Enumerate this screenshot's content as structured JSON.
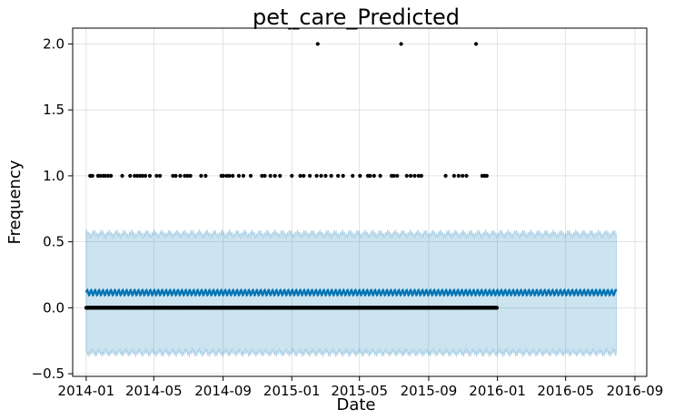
{
  "chart_data": {
    "type": "scatter",
    "title": "pet_care_Predicted",
    "xlabel": "Date",
    "ylabel": "Frequency",
    "x_axis_type": "date",
    "xlim": [
      "2013-12-08",
      "2016-09-22"
    ],
    "ylim": [
      -0.52,
      2.12
    ],
    "x_ticks": [
      "2014-01",
      "2014-05",
      "2014-09",
      "2015-01",
      "2015-05",
      "2015-09",
      "2016-01",
      "2016-05",
      "2016-09"
    ],
    "y_ticks": [
      -0.5,
      0.0,
      0.5,
      1.0,
      1.5,
      2.0
    ],
    "grid": true,
    "colors": {
      "observed": "#000000",
      "forecast": "#0072B2",
      "interval": "#0072B2"
    },
    "series": [
      {
        "kind": "observed_zero_days",
        "x_start": "2014-01-01",
        "x_end": "2015-12-31",
        "y": 0
      },
      {
        "kind": "observed_nonzero",
        "x": [
          "2014-01-08",
          "2014-01-12",
          "2014-01-22",
          "2014-01-26",
          "2014-01-31",
          "2014-02-04",
          "2014-02-09",
          "2014-02-14",
          "2014-03-06",
          "2014-03-20",
          "2014-03-28",
          "2014-04-02",
          "2014-04-07",
          "2014-04-11",
          "2014-04-16",
          "2014-04-24",
          "2014-05-06",
          "2014-05-12",
          "2014-06-04",
          "2014-06-09",
          "2014-06-17",
          "2014-06-25",
          "2014-06-30",
          "2014-07-05",
          "2014-07-24",
          "2014-08-01",
          "2014-08-29",
          "2014-09-01",
          "2014-09-07",
          "2014-09-12",
          "2014-09-18",
          "2014-09-29",
          "2014-10-07",
          "2014-10-20",
          "2014-11-09",
          "2014-11-14",
          "2014-11-24",
          "2014-12-02",
          "2014-12-11",
          "2015-01-01",
          "2015-01-16",
          "2015-01-22",
          "2015-02-02",
          "2015-02-14",
          "2015-02-22",
          "2015-03-02",
          "2015-03-12",
          "2015-03-24",
          "2015-04-02",
          "2015-04-19",
          "2015-05-02",
          "2015-05-16",
          "2015-05-20",
          "2015-05-27",
          "2015-06-07",
          "2015-06-27",
          "2015-07-01",
          "2015-07-07",
          "2015-07-24",
          "2015-07-31",
          "2015-08-07",
          "2015-08-14",
          "2015-08-19",
          "2015-10-01",
          "2015-10-16",
          "2015-10-24",
          "2015-10-31",
          "2015-11-07",
          "2015-12-05",
          "2015-12-09",
          "2015-12-13"
        ],
        "y": [
          1,
          1,
          1,
          1,
          1,
          1,
          1,
          1,
          1,
          1,
          1,
          1,
          1,
          1,
          1,
          1,
          1,
          1,
          1,
          1,
          1,
          1,
          1,
          1,
          1,
          1,
          1,
          1,
          1,
          1,
          1,
          1,
          1,
          1,
          1,
          1,
          1,
          1,
          1,
          1,
          1,
          1,
          1,
          1,
          1,
          1,
          1,
          1,
          1,
          1,
          1,
          1,
          1,
          1,
          1,
          1,
          1,
          1,
          1,
          1,
          1,
          1,
          1,
          1,
          1,
          1,
          1,
          1,
          1,
          1,
          1
        ]
      },
      {
        "kind": "observed_nonzero",
        "x": [
          "2015-02-16",
          "2015-07-14",
          "2015-11-24"
        ],
        "y": [
          2,
          2,
          2
        ]
      },
      {
        "kind": "forecast",
        "x_start": "2014-01-01",
        "x_end": "2016-07-30",
        "y_low": 0.095,
        "y_high": 0.135,
        "period_days": 7
      },
      {
        "kind": "uncertainty_interval",
        "x_start": "2014-01-01",
        "x_end": "2016-07-30",
        "upper_mean": 0.56,
        "lower_mean": -0.34,
        "jitter": 0.035
      }
    ]
  }
}
